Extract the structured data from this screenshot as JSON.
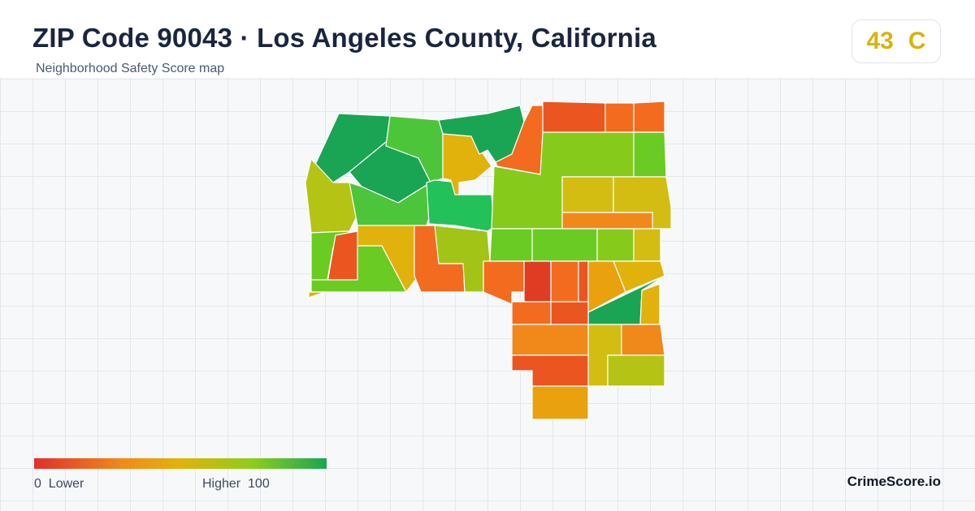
{
  "header": {
    "title": "ZIP Code 90043 · Los Angeles County, California",
    "subtitle": "Neighborhood Safety Score map"
  },
  "score": {
    "value": "43",
    "grade": "C",
    "color": "#d8b40a"
  },
  "legend": {
    "min_value": "0",
    "min_label": "Lower",
    "max_label": "Higher",
    "max_value": "100",
    "colors": [
      "#e0302a",
      "#f08a1a",
      "#e2b20c",
      "#8ccd1c",
      "#1aa554"
    ]
  },
  "brand": "CrimeScore.io",
  "map": {
    "color_scale": {
      "red": "#e03c24",
      "red_orange": "#ea5520",
      "orange": "#f26b1e",
      "dark_orange": "#f0881a",
      "amber": "#eaa10e",
      "gold": "#e2b20c",
      "mustard": "#d3bd12",
      "olive": "#b5c314",
      "yellow_green": "#a2c416",
      "lime": "#86cb1b",
      "bright_green": "#6acb22",
      "green": "#4dc53b",
      "emerald": "#22c15a",
      "dark_green": "#1aa554"
    }
  }
}
